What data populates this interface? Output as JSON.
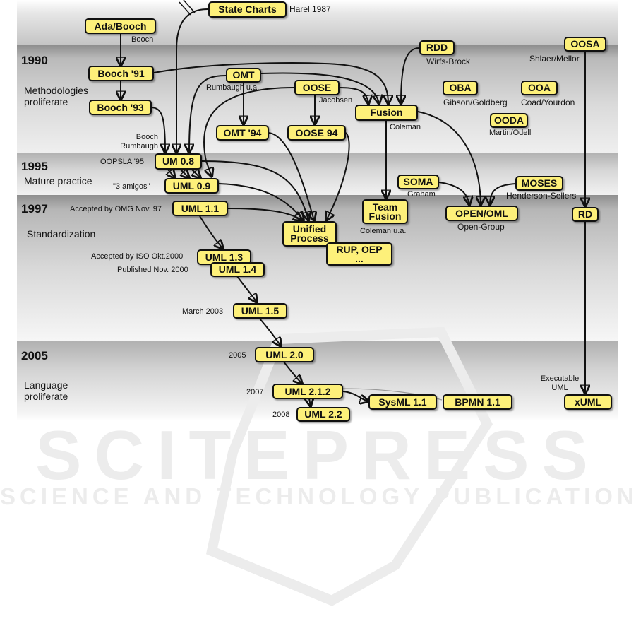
{
  "watermark": {
    "title": "SCITEPRESS",
    "subtitle": "SCIENCE AND TECHNOLOGY PUBLICATIONS"
  },
  "years": [
    "1990",
    "1995",
    "1997",
    "2005"
  ],
  "phases": {
    "methodologies": "Methodologies\nproliferate",
    "mature": "Mature practice",
    "standardization": "Standardization",
    "language": "Language\nproliferate"
  },
  "nodes": {
    "state_charts": "State Charts",
    "ada_booch": "Ada/Booch",
    "booch91": "Booch '91",
    "booch93": "Booch '93",
    "omt": "OMT",
    "oose": "OOSE",
    "omt94": "OMT '94",
    "oose94": "OOSE 94",
    "fusion": "Fusion",
    "rdd": "RDD",
    "oba": "OBA",
    "ooa": "OOA",
    "ooda": "OODA",
    "oosa": "OOSA",
    "um08": "UM 0.8",
    "uml09": "UML 0.9",
    "uml11": "UML 1.1",
    "unified": "Unified\nProcess",
    "rup": "RUP, OEP\n...",
    "team_fusion": "Team\nFusion",
    "soma": "SOMA",
    "moses": "MOSES",
    "open_oml": "OPEN/OML",
    "rd": "RD",
    "uml13": "UML 1.3",
    "uml14": "UML 1.4",
    "uml15": "UML 1.5",
    "uml20": "UML 2.0",
    "uml212": "UML 2.1.2",
    "uml22": "UML 2.2",
    "sysml": "SysML 1.1",
    "bpmn": "BPMN 1.1",
    "xuml": "xUML"
  },
  "labels": {
    "harel": "Harel 1987",
    "booch": "Booch",
    "rumbaugh_ua": "Rumbaugh u.a.",
    "jacobsen": "Jacobsen",
    "wirfs": "Wirfs-Brock",
    "coleman": "Coleman",
    "gibson": "Gibson/Goldberg",
    "coad": "Coad/Yourdon",
    "martin": "Martin/Odell",
    "shlaer": "Shlaer/Mellor",
    "booch_rumbaugh": "Booch\nRumbaugh",
    "oopsla": "OOPSLA '95",
    "amigos": "\"3 amigos\"",
    "omg": "Accepted by OMG Nov. 97",
    "graham": "Graham",
    "henderson": "Henderson-Sellers",
    "open_group": "Open-Group",
    "coleman_ua": "Coleman u.a.",
    "iso": "Accepted by ISO Okt.2000",
    "published": "Published Nov. 2000",
    "march": "March 2003",
    "y2005": "2005",
    "y2007": "2007",
    "y2008": "2008",
    "executable": "Executable\nUML"
  }
}
